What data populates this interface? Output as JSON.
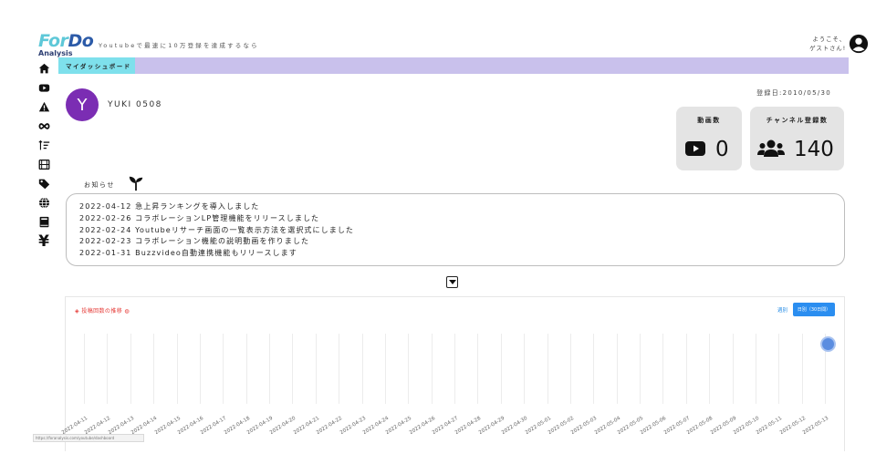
{
  "header": {
    "logo_for": "For",
    "logo_do": "Do",
    "logo_sub": "Analysis",
    "tagline": "Youtubeで最速に10万登録を達成するなら",
    "welcome_line1": "ようこそ、",
    "welcome_line2": "ゲストさん!",
    "avatar_icon": "user-circle-icon"
  },
  "sidebar": {
    "items": [
      {
        "icon": "home-icon"
      },
      {
        "icon": "youtube-icon"
      },
      {
        "icon": "warning-icon"
      },
      {
        "icon": "infinity-icon"
      },
      {
        "icon": "sort-icon"
      },
      {
        "icon": "film-icon"
      },
      {
        "icon": "tag-icon"
      },
      {
        "icon": "globe-icon"
      },
      {
        "icon": "book-icon"
      },
      {
        "icon": "yen-icon",
        "glyph": "¥"
      }
    ]
  },
  "tabbar": {
    "active_label": "マイダッシュボード"
  },
  "user": {
    "initial": "Y",
    "name": "YUKI 0508",
    "registered": "登録日:2010/05/30",
    "avatar_color": "#7b2db3"
  },
  "stats": {
    "videos": {
      "label": "動画数",
      "value": "0"
    },
    "subscribers": {
      "label": "チャンネル登録数",
      "value": "140"
    }
  },
  "news": {
    "label": "お知らせ",
    "items": [
      "2022-04-12 急上昇ランキングを導入しました",
      "2022-02-26 コラボレーションLP管理機能をリリースしました",
      "2022-02-24 Youtubeリサーチ画面の一覧表示方法を選択式にしました",
      "2022-02-23 コラボレーション機能の説明動画を作りました",
      "2022-01-31 Buzzvideo自動連携機能もリリースします"
    ]
  },
  "chart_panel": {
    "title": "◈ 投稿回数の推移 ◍",
    "mode_label": "週別",
    "button_label": "日別（30日間）",
    "accent": "#2b8ef0",
    "title_color": "#e53935"
  },
  "chart_data": {
    "type": "scatter",
    "categories": [
      "2022-04-11",
      "2022-04-12",
      "2022-04-13",
      "2022-04-14",
      "2022-04-15",
      "2022-04-16",
      "2022-04-17",
      "2022-04-18",
      "2022-04-19",
      "2022-04-20",
      "2022-04-21",
      "2022-04-22",
      "2022-04-23",
      "2022-04-24",
      "2022-04-25",
      "2022-04-26",
      "2022-04-27",
      "2022-04-28",
      "2022-04-29",
      "2022-04-30",
      "2022-05-01",
      "2022-05-02",
      "2022-05-03",
      "2022-05-04",
      "2022-05-05",
      "2022-05-06",
      "2022-05-07",
      "2022-05-08",
      "2022-05-09",
      "2022-05-10",
      "2022-05-11",
      "2022-05-12",
      "2022-05-13"
    ],
    "point_index": 32,
    "grid": true
  },
  "status_bar": {
    "url": "https://foranalysis.com/youtube/dashboard"
  }
}
